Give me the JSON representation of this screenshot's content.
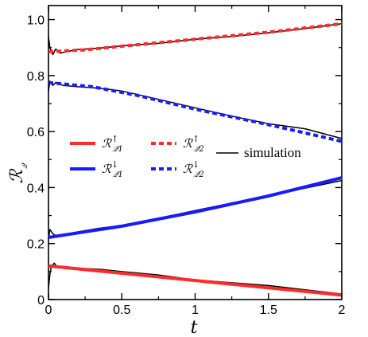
{
  "chart_data": {
    "type": "line",
    "title": "",
    "xlabel": "t",
    "ylabel": "R_Q",
    "xlim": [
      0,
      2
    ],
    "ylim": [
      0,
      1.05
    ],
    "x_ticks": [
      "0",
      "0.5",
      "1",
      "1.5",
      "2"
    ],
    "y_ticks": [
      "0",
      "0.2",
      "0.4",
      "0.6",
      "0.8",
      "1.0"
    ],
    "grid": false,
    "legend_placement": "center-left",
    "series": [
      {
        "name": "R_Q1 up",
        "color": "#ff2a2a",
        "style": "solid",
        "x": [
          0,
          2
        ],
        "y": [
          0.12,
          0.016
        ]
      },
      {
        "name": "R_Q2 up",
        "color": "#ff2a2a",
        "style": "dashed",
        "x": [
          0,
          0.25,
          0.5,
          1,
          1.5,
          2
        ],
        "y": [
          0.885,
          0.892,
          0.905,
          0.93,
          0.955,
          0.985
        ]
      },
      {
        "name": "R_Q1 down",
        "color": "#1a1aff",
        "style": "solid",
        "x": [
          0,
          0.5,
          1,
          1.5,
          2
        ],
        "y": [
          0.222,
          0.262,
          0.313,
          0.37,
          0.435
        ]
      },
      {
        "name": "R_Q2 down",
        "color": "#1a1aff",
        "style": "dashed",
        "x": [
          0,
          0.1,
          0.3,
          0.6,
          1,
          1.5,
          2
        ],
        "y": [
          0.775,
          0.77,
          0.76,
          0.73,
          0.68,
          0.625,
          0.565
        ]
      },
      {
        "name": "simulation",
        "color": "#000000",
        "style": "solid-thin",
        "segments": [
          {
            "x": [
              0,
              0.01,
              0.03,
              0.05,
              0.08,
              0.12,
              0.2,
              0.35,
              0.5,
              0.75,
              1,
              1.25,
              1.5,
              1.75,
              2
            ],
            "y": [
              0.94,
              0.9,
              0.875,
              0.895,
              0.88,
              0.885,
              0.893,
              0.898,
              0.906,
              0.915,
              0.93,
              0.94,
              0.953,
              0.968,
              0.985
            ]
          },
          {
            "x": [
              0,
              0.01,
              0.03,
              0.05,
              0.1,
              0.2,
              0.35,
              0.5,
              0.75,
              1,
              1.25,
              1.5,
              1.75,
              2
            ],
            "y": [
              0.745,
              0.78,
              0.765,
              0.775,
              0.765,
              0.76,
              0.755,
              0.745,
              0.715,
              0.685,
              0.655,
              0.628,
              0.61,
              0.575
            ]
          },
          {
            "x": [
              0,
              0.01,
              0.03,
              0.06,
              0.1,
              0.2,
              0.35,
              0.5,
              0.75,
              1,
              1.25,
              1.5,
              1.75,
              2
            ],
            "y": [
              0.22,
              0.25,
              0.235,
              0.225,
              0.232,
              0.242,
              0.255,
              0.265,
              0.29,
              0.318,
              0.345,
              0.368,
              0.398,
              0.425
            ]
          },
          {
            "x": [
              0,
              0.01,
              0.02,
              0.04,
              0.06,
              0.1,
              0.2,
              0.35,
              0.5,
              0.75,
              1,
              1.25,
              1.5,
              1.75,
              2
            ],
            "y": [
              0.04,
              0.09,
              0.12,
              0.13,
              0.115,
              0.118,
              0.112,
              0.108,
              0.1,
              0.088,
              0.07,
              0.06,
              0.05,
              0.035,
              0.02
            ]
          }
        ]
      }
    ],
    "legend": {
      "entries": [
        {
          "label": "R",
          "sub": "Q1",
          "sup": "↑",
          "color": "#ff2a2a",
          "style": "solid"
        },
        {
          "label": "R",
          "sub": "Q2",
          "sup": "↑",
          "color": "#ff2a2a",
          "style": "dashed"
        },
        {
          "label": "R",
          "sub": "Q1",
          "sup": "↓",
          "color": "#1a1aff",
          "style": "solid"
        },
        {
          "label": "R",
          "sub": "Q2",
          "sup": "↓",
          "color": "#1a1aff",
          "style": "dashed"
        }
      ],
      "simulation_label": "simulation"
    }
  }
}
